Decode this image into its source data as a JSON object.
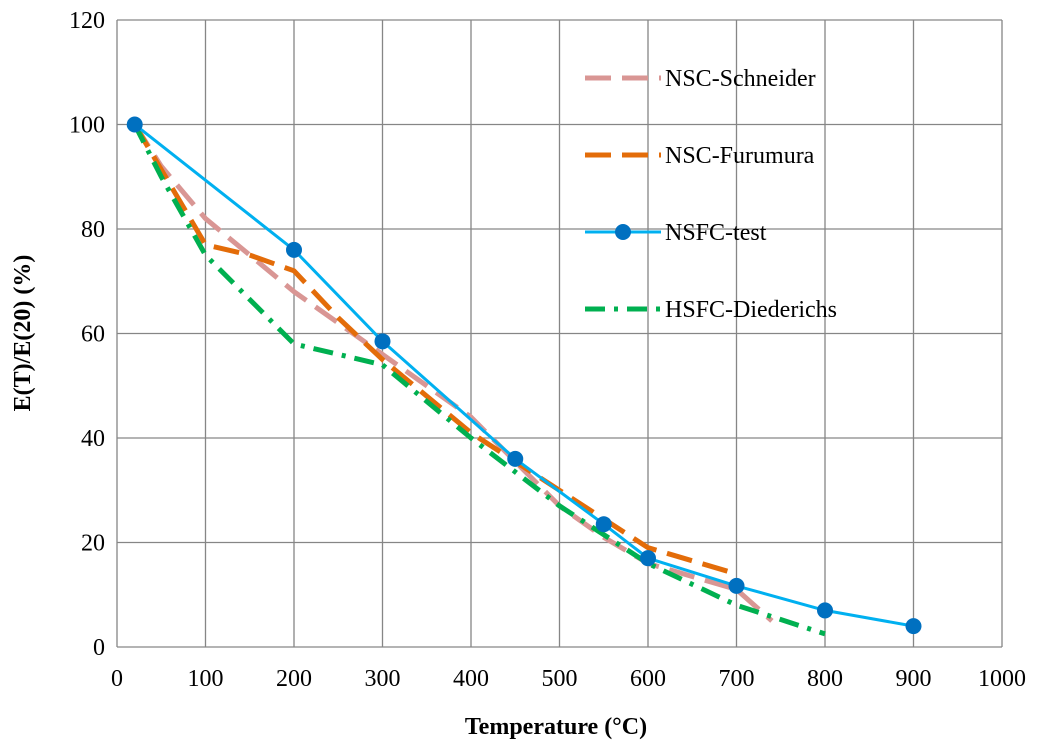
{
  "chart_data": {
    "type": "line",
    "title": "",
    "xlabel": "Temperature (°C)",
    "ylabel": "E(T)/E(20) (%)",
    "xlim": [
      0,
      1000
    ],
    "ylim": [
      0,
      120
    ],
    "x_ticks": [
      0,
      100,
      200,
      300,
      400,
      500,
      600,
      700,
      800,
      900,
      1000
    ],
    "y_ticks": [
      0,
      20,
      40,
      60,
      80,
      100,
      120
    ],
    "grid": true,
    "legend_position": "top-right",
    "series": [
      {
        "name": "NSC-Schneider",
        "color": "#d99694",
        "line_style": "long-dash",
        "markers": false,
        "x": [
          20,
          50,
          100,
          150,
          200,
          250,
          300,
          400,
          500,
          550,
          600,
          700,
          740
        ],
        "y": [
          100,
          92,
          82,
          75,
          68,
          62,
          56,
          44,
          27,
          21,
          16,
          11,
          5
        ]
      },
      {
        "name": "NSC-Furumura",
        "color": "#e36c09",
        "line_style": "long-dash",
        "markers": false,
        "x": [
          20,
          100,
          150,
          200,
          250,
          300,
          350,
          400,
          500,
          600,
          700
        ],
        "y": [
          100,
          77,
          75,
          72,
          63,
          55,
          48,
          41,
          30,
          19,
          14
        ]
      },
      {
        "name": "NSFC-test",
        "color": "#00b0f0",
        "line_style": "solid",
        "markers": true,
        "marker_color": "#0070c0",
        "x": [
          20,
          200,
          300,
          450,
          550,
          600,
          700,
          800,
          900
        ],
        "y": [
          100,
          76,
          58.5,
          36,
          23.5,
          17,
          11.7,
          7,
          4
        ]
      },
      {
        "name": "HSFC-Diederichs",
        "color": "#00b050",
        "line_style": "dash-dot",
        "markers": false,
        "x": [
          20,
          50,
          100,
          200,
          300,
          400,
          500,
          600,
          700,
          800
        ],
        "y": [
          100,
          90,
          75,
          58,
          54,
          40,
          27,
          16,
          8,
          2.5
        ]
      }
    ]
  }
}
